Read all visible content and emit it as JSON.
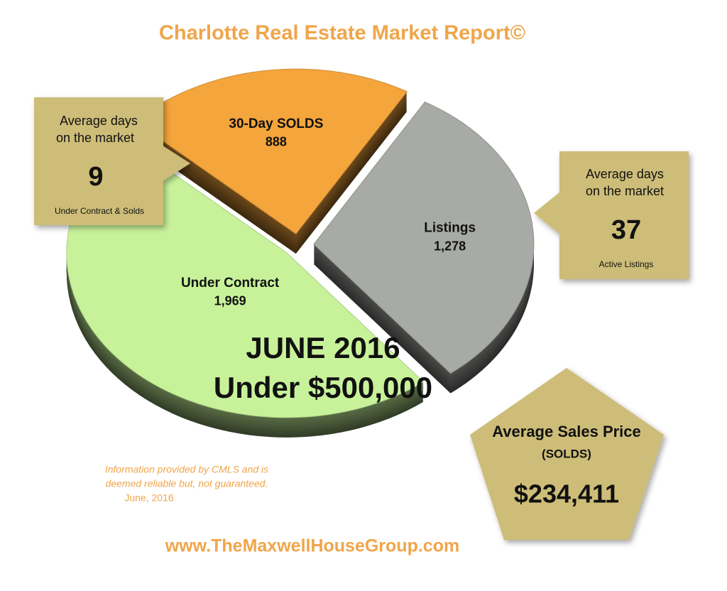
{
  "chart_data": {
    "type": "pie",
    "title": "Charlotte Real Estate Market Report©",
    "categories": [
      "30-Day SOLDS",
      "Listings",
      "Under Contract"
    ],
    "values": [
      888,
      1278,
      1969
    ],
    "value_labels": [
      "888",
      "1,278",
      "1,969"
    ],
    "colors": [
      "#f4a53c",
      "#a7aaa5",
      "#c8f29a"
    ],
    "subtitle_lines": [
      "JUNE 2016",
      "Under $500,000"
    ],
    "callouts": [
      {
        "lines": [
          "Average days",
          "on the market"
        ],
        "value": 9,
        "note": "Under Contract & Solds"
      },
      {
        "lines": [
          "Average days",
          "on the market"
        ],
        "value": 37,
        "note": "Active Listings"
      }
    ],
    "price_box": {
      "title": "Average Sales Price",
      "subtitle": "(SOLDS)",
      "value": {
        "value": 234411,
        "label": "$234,411"
      }
    },
    "footnote_lines": [
      "Information provided by CMLS and is",
      "deemed reliable but, not guaranteed.",
      "June, 2016"
    ],
    "website": "www.TheMaxwellHouseGroup.com"
  }
}
